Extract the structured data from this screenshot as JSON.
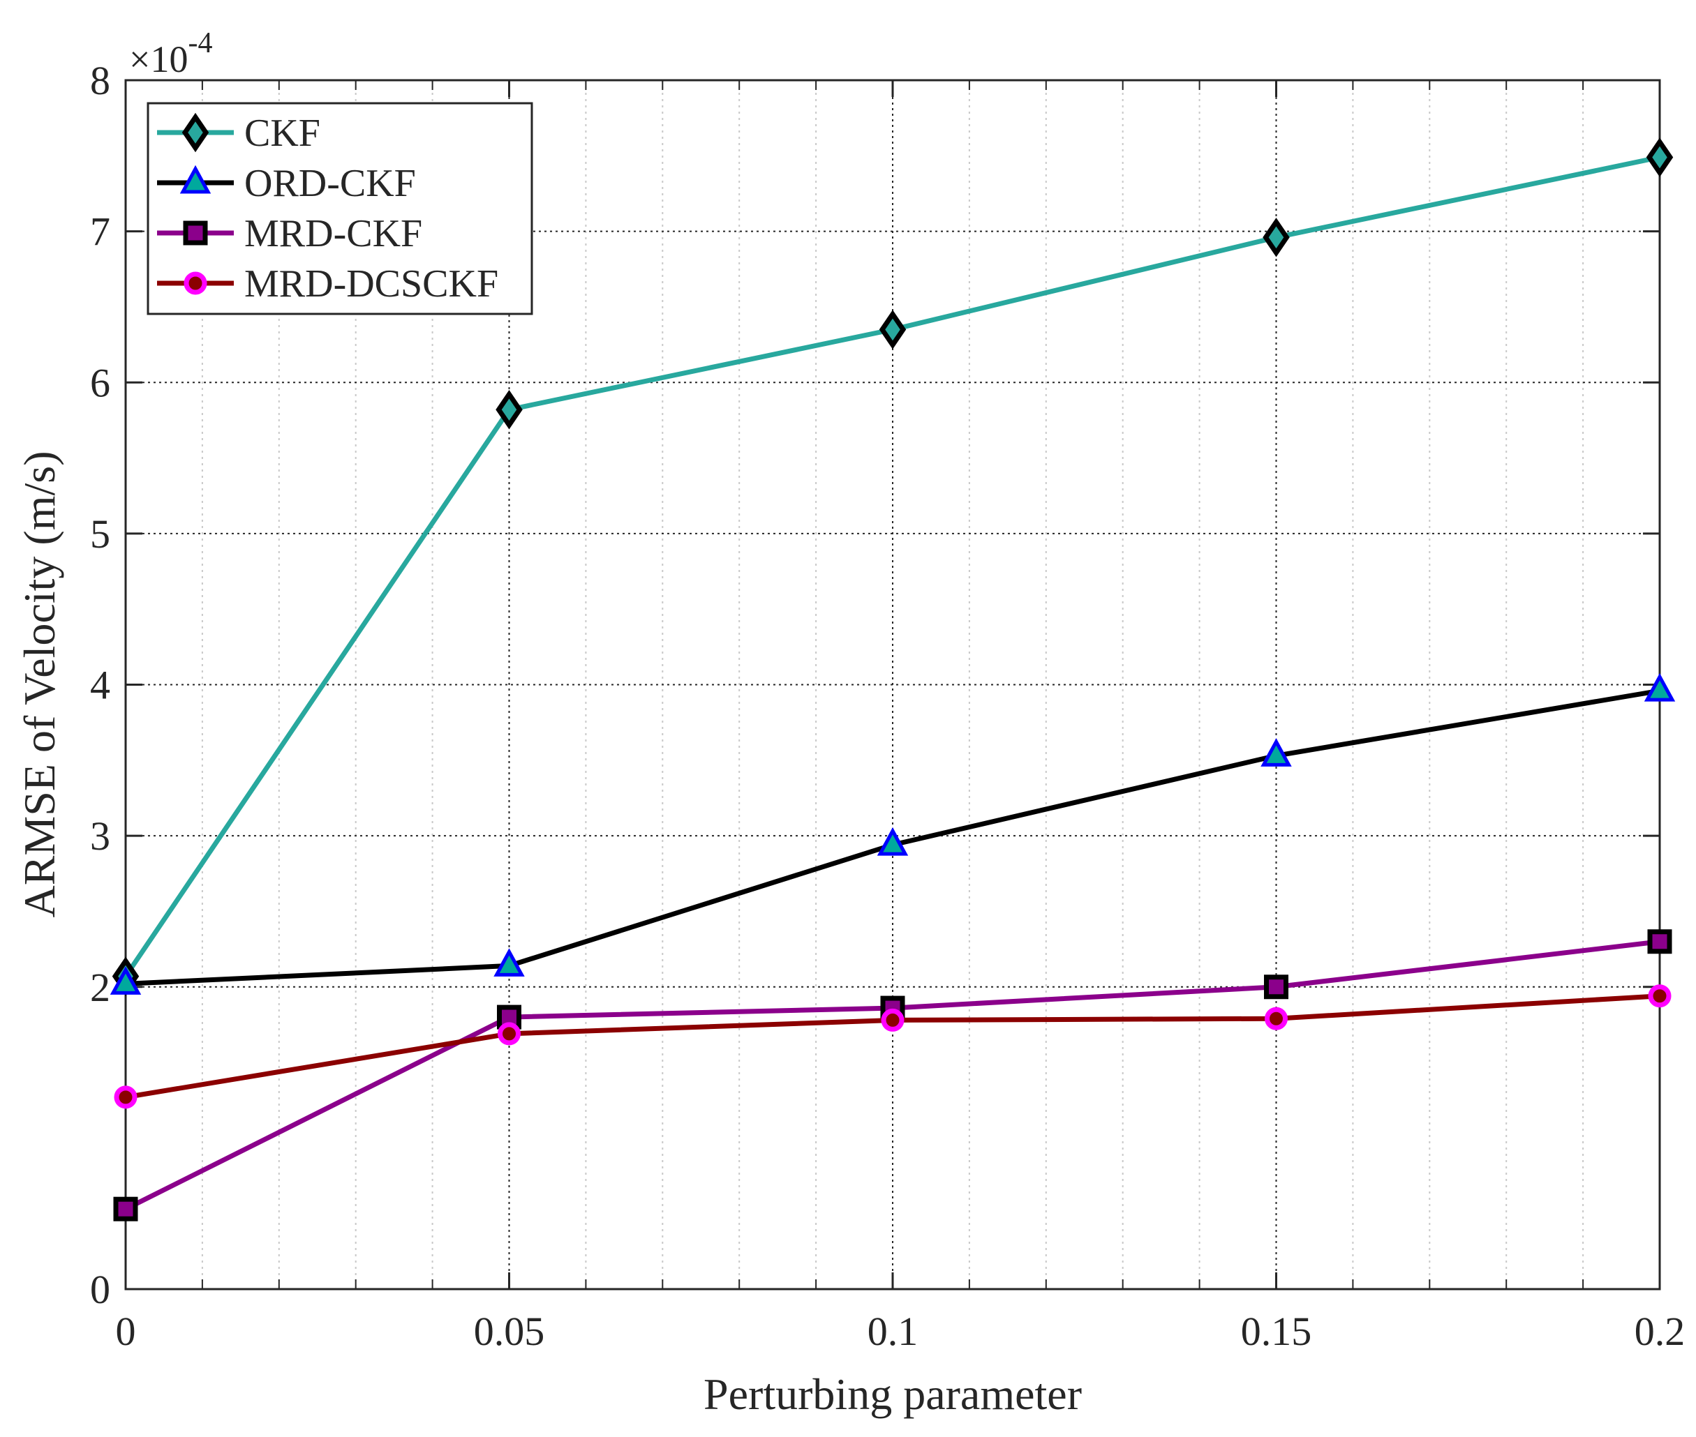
{
  "chart_data": {
    "type": "line",
    "xlabel": "Perturbing parameter",
    "ylabel": "ARMSE of Velocity (m/s)",
    "y_multiplier_label": "×10",
    "y_multiplier_exponent": "-4",
    "xlim": [
      0,
      0.2
    ],
    "ylim": [
      0,
      8
    ],
    "x_ticks": [
      0,
      0.05,
      0.1,
      0.15,
      0.2
    ],
    "x_tick_labels": [
      "0",
      "0.05",
      "0.1",
      "0.15",
      "0.2"
    ],
    "y_ticks": [
      0,
      2,
      3,
      4,
      5,
      6,
      7,
      8
    ],
    "y_tick_labels": [
      "0",
      "2",
      "3",
      "4",
      "5",
      "6",
      "7",
      "8"
    ],
    "grid": true,
    "legend_position": "top-left",
    "x": [
      0,
      0.05,
      0.1,
      0.15,
      0.2
    ],
    "series": [
      {
        "name": "CKF",
        "values": [
          2.07,
          5.82,
          6.35,
          6.96,
          7.49
        ],
        "color": "#28a89e",
        "marker": "diamond",
        "marker_fill": "#28a89e",
        "marker_edge": "#000000"
      },
      {
        "name": "ORD-CKF",
        "values": [
          2.02,
          2.14,
          2.94,
          3.53,
          3.96
        ],
        "color": "#000000",
        "marker": "triangle",
        "marker_fill": "#00a99d",
        "marker_edge": "#0000ff"
      },
      {
        "name": "MRD-CKF",
        "values": [
          0.53,
          1.8,
          1.86,
          2.0,
          2.3
        ],
        "color": "#8b008b",
        "marker": "square",
        "marker_fill": "#8b008b",
        "marker_edge": "#000000"
      },
      {
        "name": "MRD-DCSCKF",
        "values": [
          1.27,
          1.69,
          1.78,
          1.79,
          1.94
        ],
        "color": "#8b0000",
        "marker": "circle",
        "marker_fill": "#8b0000",
        "marker_edge": "#ff00ff"
      }
    ]
  }
}
